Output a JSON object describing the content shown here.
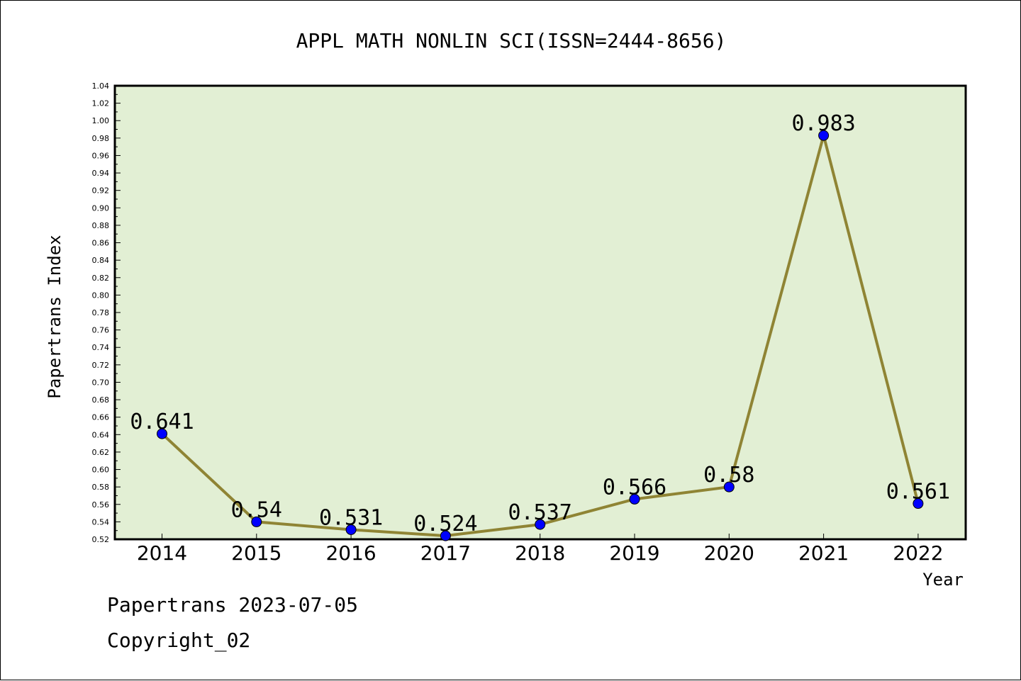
{
  "chart_data": {
    "type": "line",
    "title": "APPL MATH NONLIN SCI(ISSN=2444-8656)",
    "xlabel": "Year",
    "ylabel": "Papertrans Index",
    "categories": [
      "2014",
      "2015",
      "2016",
      "2017",
      "2018",
      "2019",
      "2020",
      "2021",
      "2022"
    ],
    "values": [
      0.641,
      0.54,
      0.531,
      0.524,
      0.537,
      0.566,
      0.58,
      0.983,
      0.561
    ],
    "data_labels": [
      "0.641",
      "0.54",
      "0.531",
      "0.524",
      "0.537",
      "0.566",
      "0.58",
      "0.983",
      "0.561"
    ],
    "ylim": [
      0.52,
      1.04
    ],
    "yticks": [
      "0.52",
      "0.54",
      "0.56",
      "0.58",
      "0.60",
      "0.62",
      "0.64",
      "0.66",
      "0.68",
      "0.70",
      "0.72",
      "0.74",
      "0.76",
      "0.78",
      "0.80",
      "0.82",
      "0.84",
      "0.86",
      "0.88",
      "0.90",
      "0.92",
      "0.94",
      "0.96",
      "0.98",
      "1.00",
      "1.02",
      "1.04"
    ],
    "grid": false,
    "colors": {
      "plot_bg": "#e2efd4",
      "line": "#8f8434",
      "marker": "#0000ff"
    }
  },
  "footer": {
    "line1": "Papertrans 2023-07-05",
    "line2": "Copyright_02"
  }
}
